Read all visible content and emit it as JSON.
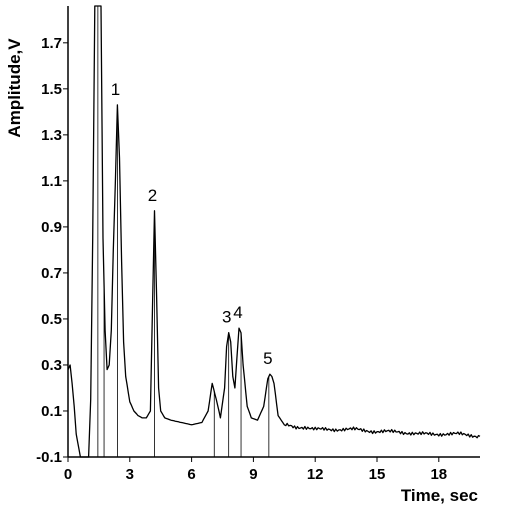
{
  "chart_data": {
    "type": "line",
    "title": "",
    "xlabel": "Time, sec",
    "ylabel": "Amplitude,V",
    "xlim": [
      0,
      20
    ],
    "ylim": [
      -0.1,
      1.86
    ],
    "x_ticks": [
      0,
      3,
      6,
      9,
      12,
      15,
      18
    ],
    "y_ticks": [
      -0.1,
      0.1,
      0.3,
      0.5,
      0.7,
      0.9,
      1.1,
      1.3,
      1.5,
      1.7
    ],
    "y_tick_labels": [
      "-0.1",
      "0.1",
      "0.3",
      "0.5",
      "0.7",
      "0.9",
      "1.1",
      "1.3",
      "1.5",
      "1.7"
    ],
    "grid": false,
    "series": [
      {
        "x": [
          0,
          0.1,
          0.2,
          0.3,
          0.4,
          0.6,
          0.8,
          1.0,
          1.1,
          1.2,
          1.3,
          1.4,
          1.5,
          1.6,
          1.7,
          1.8,
          1.9,
          2.0,
          2.1,
          2.2,
          2.3,
          2.4,
          2.5,
          2.6,
          2.7,
          2.8,
          3.0,
          3.2,
          3.4,
          3.6,
          3.8,
          4.0,
          4.1,
          4.2,
          4.3,
          4.4,
          4.5,
          4.7,
          5.0,
          5.5,
          6.0,
          6.5,
          6.8,
          7.0,
          7.2,
          7.4,
          7.6,
          7.7,
          7.8,
          7.9,
          8.0,
          8.1,
          8.2,
          8.3,
          8.4,
          8.5,
          8.7,
          8.9,
          9.2,
          9.5,
          9.7,
          9.8,
          9.9,
          10.0,
          10.2,
          10.5,
          11.0,
          11.5,
          12.0,
          13.0,
          14.0,
          15.0,
          16.0,
          17.0,
          18.0,
          19.0,
          20.0
        ],
        "y": [
          0.28,
          0.3,
          0.22,
          0.12,
          0.0,
          -0.1,
          -0.1,
          -0.1,
          0.15,
          0.85,
          1.9,
          1.9,
          1.9,
          1.9,
          0.85,
          0.45,
          0.28,
          0.3,
          0.45,
          0.8,
          1.1,
          1.43,
          1.2,
          0.75,
          0.4,
          0.25,
          0.14,
          0.1,
          0.08,
          0.07,
          0.07,
          0.1,
          0.55,
          0.97,
          0.6,
          0.2,
          0.1,
          0.07,
          0.06,
          0.05,
          0.04,
          0.05,
          0.1,
          0.22,
          0.15,
          0.07,
          0.2,
          0.38,
          0.44,
          0.4,
          0.25,
          0.2,
          0.33,
          0.46,
          0.44,
          0.3,
          0.12,
          0.07,
          0.06,
          0.12,
          0.24,
          0.26,
          0.25,
          0.22,
          0.08,
          0.04,
          0.03,
          0.03,
          0.02,
          0.02,
          0.02,
          0.01,
          0.01,
          0.0,
          0.0,
          0.0,
          -0.01
        ]
      }
    ],
    "peak_markers": [
      {
        "label": "1",
        "x": 2.4,
        "y": 1.43
      },
      {
        "label": "2",
        "x": 4.2,
        "y": 0.97
      },
      {
        "label": "3",
        "x": 7.8,
        "y": 0.44
      },
      {
        "label": "4",
        "x": 8.35,
        "y": 0.46
      },
      {
        "label": "5",
        "x": 9.8,
        "y": 0.26
      }
    ],
    "drop_lines_x": [
      1.45,
      1.75,
      2.4,
      4.2,
      7.1,
      7.8,
      8.4,
      9.75
    ]
  }
}
